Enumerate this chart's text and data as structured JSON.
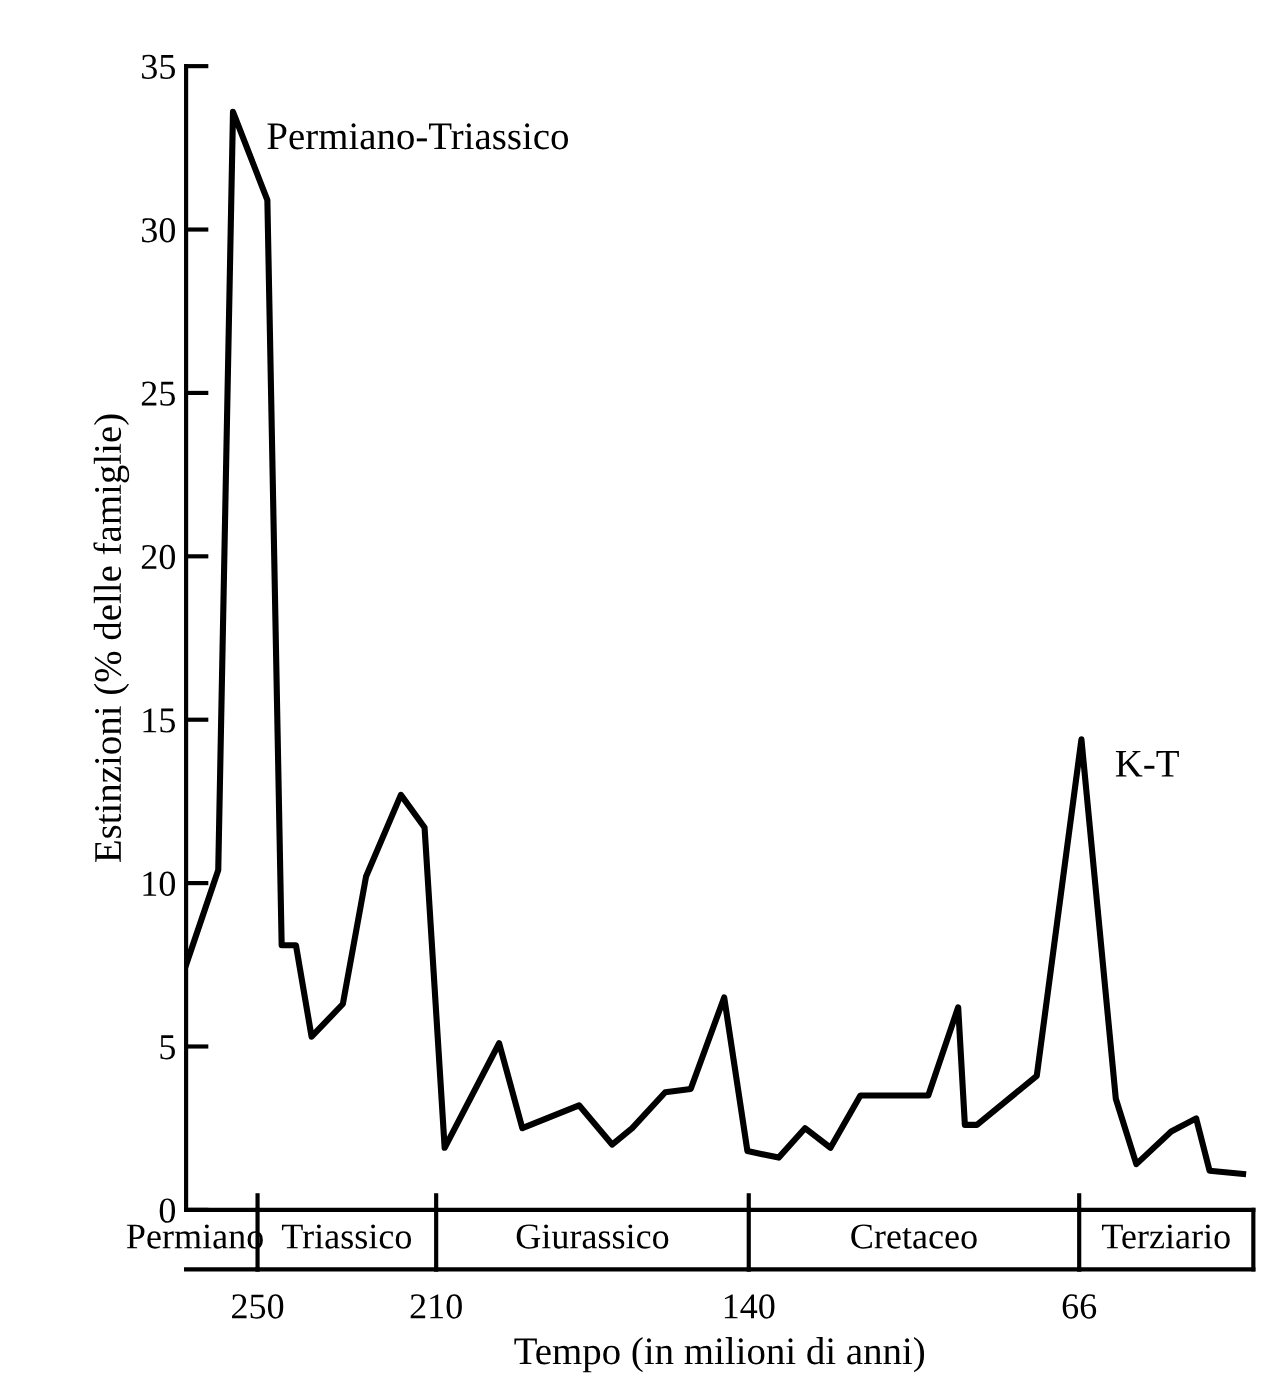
{
  "chart_data": {
    "type": "line",
    "xlabel": "Tempo (in milioni di anni)",
    "ylabel": "Estinzioni (% delle famiglie)",
    "xlim": [
      266,
      27
    ],
    "xticks": [
      250,
      210,
      140,
      66
    ],
    "ylim": [
      0,
      35
    ],
    "yticks": [
      0,
      5,
      10,
      15,
      20,
      25,
      30,
      35
    ],
    "grid": false,
    "marker": "none",
    "line_style": "solid",
    "series": [
      {
        "color": "#000000",
        "x": [
          266.0,
          258.8,
          255.5,
          247.8,
          244.6,
          241.4,
          237.9,
          230.9,
          225.7,
          217.9,
          212.6,
          208.1,
          195.9,
          190.7,
          178.0,
          170.6,
          166.1,
          158.7,
          153.0,
          145.5,
          140.3,
          133.3,
          127.4,
          121.7,
          115.0,
          99.8,
          93.1,
          91.6,
          88.9,
          75.5,
          65.5,
          57.8,
          53.2,
          45.4,
          39.8,
          36.8,
          29.3
        ],
        "values": [
          7.5,
          10.4,
          33.6,
          30.9,
          8.1,
          8.1,
          5.3,
          6.3,
          10.2,
          12.7,
          11.7,
          1.9,
          5.1,
          2.5,
          3.2,
          2.0,
          2.5,
          3.6,
          3.7,
          6.5,
          1.8,
          1.6,
          2.5,
          1.9,
          3.5,
          3.5,
          6.2,
          2.6,
          2.6,
          4.1,
          14.4,
          3.4,
          1.4,
          2.4,
          2.8,
          1.2,
          1.1
        ]
      }
    ],
    "annotations": [
      {
        "text": "Permiano-Triassico",
        "x": 255.5,
        "y": 33.6
      },
      {
        "text": "K-T",
        "x": 65.5,
        "y": 14.4
      },
      "Permiano",
      "Triassico",
      "Giurassico",
      "Cretaceo",
      "Terziario"
    ]
  }
}
